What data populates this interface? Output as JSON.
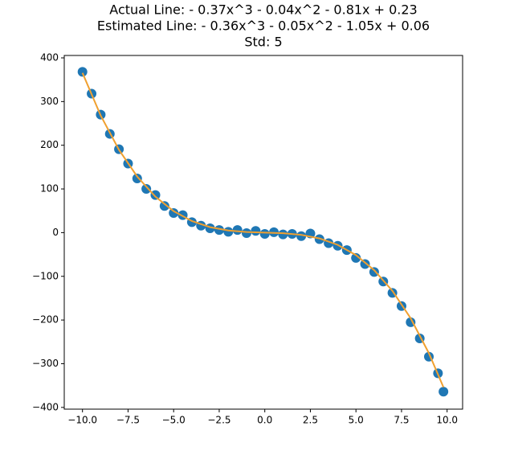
{
  "chart_data": {
    "type": "scatter-line",
    "title_lines": [
      "Actual Line:  - 0.37x^3 - 0.04x^2 - 0.81x + 0.23",
      "Estimated Line:  - 0.36x^3 - 0.05x^2 - 1.05x + 0.06",
      "Std: 5"
    ],
    "xlim": [
      -11.0,
      10.85
    ],
    "ylim": [
      -404,
      405.5
    ],
    "xticks": [
      {
        "value": -10,
        "label": "−10.0"
      },
      {
        "value": -7.5,
        "label": "−7.5"
      },
      {
        "value": -5,
        "label": "−5.0"
      },
      {
        "value": -2.5,
        "label": "−2.5"
      },
      {
        "value": 0,
        "label": "0.0"
      },
      2.5,
      {
        "value": 5,
        "label": "5.0"
      },
      7.5,
      {
        "value": 10,
        "label": "10.0"
      }
    ],
    "yticks": [
      {
        "value": -400,
        "label": "−400"
      },
      {
        "value": -300,
        "label": "−300"
      },
      {
        "value": -200,
        "label": "−200"
      },
      {
        "value": -100,
        "label": "−100"
      },
      0,
      100,
      200,
      300,
      400
    ],
    "series": [
      {
        "kind": "scatter",
        "color": "#1f77b4",
        "x": [
          -10,
          -9.5,
          -9,
          -8.5,
          -8,
          -7.5,
          -7,
          -6.5,
          -6,
          -5.5,
          -5,
          -4.5,
          -4,
          -3.5,
          -3,
          -2.5,
          -2,
          -1.5,
          -1,
          -0.5,
          0,
          0.5,
          1,
          1.5,
          2,
          2.5,
          3,
          3.5,
          4,
          4.5,
          5,
          5.5,
          6,
          6.5,
          7,
          7.5,
          8,
          8.5,
          9,
          9.5,
          9.8
        ],
        "values": [
          368,
          318,
          270,
          226,
          191,
          158,
          124,
          100,
          86,
          61,
          45,
          40,
          24,
          16,
          10,
          6,
          2,
          6,
          -1,
          4,
          -3,
          1,
          -4,
          -3,
          -8,
          -2,
          -15,
          -24,
          -30,
          -40,
          -58,
          -72,
          -90,
          -112,
          -138,
          -168,
          -205,
          -242,
          -284,
          -322,
          -364
        ]
      },
      {
        "kind": "line",
        "color": "#f0a030",
        "x": [
          -10,
          -9,
          -8,
          -7,
          -6,
          -5,
          -4,
          -3,
          -2,
          -1,
          0,
          1,
          2,
          3,
          4,
          5,
          6,
          7,
          8,
          9,
          9.8
        ],
        "values": [
          365.6,
          267.9,
          189.6,
          128.4,
          82.3,
          49.1,
          26.5,
          12.5,
          4.84,
          1.42,
          0.06,
          -1.4,
          -5.12,
          -13.26,
          -27.98,
          -51.44,
          -85.8,
          -133.22,
          -195.86,
          -275.88,
          -353.86
        ]
      }
    ]
  }
}
